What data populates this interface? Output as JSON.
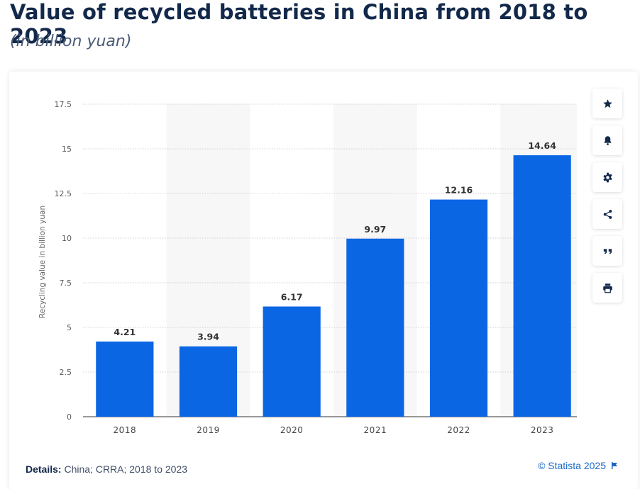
{
  "header": {
    "title": "Value of recycled batteries in China from 2018 to 2023",
    "subtitle": "(in billion yuan)"
  },
  "toolbar": {
    "buttons": [
      {
        "icon": "star-icon",
        "name": "favorite"
      },
      {
        "icon": "bell-icon",
        "name": "notification"
      },
      {
        "icon": "gear-icon",
        "name": "settings"
      },
      {
        "icon": "share-icon",
        "name": "share"
      },
      {
        "icon": "quote-icon",
        "name": "cite"
      },
      {
        "icon": "print-icon",
        "name": "print"
      }
    ]
  },
  "footer": {
    "details_label": "Details:",
    "details_text": "China; CRRA; 2018 to 2023",
    "credit": "© Statista 2025"
  },
  "colors": {
    "bar": "#0b66e4",
    "title": "#13294b",
    "accent": "#1c66c6"
  },
  "chart_data": {
    "type": "bar",
    "title": "Value of recycled batteries in China from 2018 to 2023",
    "subtitle": "(in billion yuan)",
    "ylabel": "Recycling value in billion yuan",
    "xlabel": "",
    "categories": [
      "2018",
      "2019",
      "2020",
      "2021",
      "2022",
      "2023"
    ],
    "values": [
      4.21,
      3.94,
      6.17,
      9.97,
      12.16,
      14.64
    ],
    "value_labels": [
      "4.21",
      "3.94",
      "6.17",
      "9.97",
      "12.16",
      "14.64"
    ],
    "ylim": [
      0,
      17.5
    ],
    "yticks": [
      0,
      2.5,
      5,
      7.5,
      10,
      12.5,
      15,
      17.5
    ],
    "ytick_labels": [
      "0",
      "2.5",
      "5",
      "7.5",
      "10",
      "12.5",
      "15",
      "17.5"
    ],
    "grid": true,
    "legend": "none"
  }
}
